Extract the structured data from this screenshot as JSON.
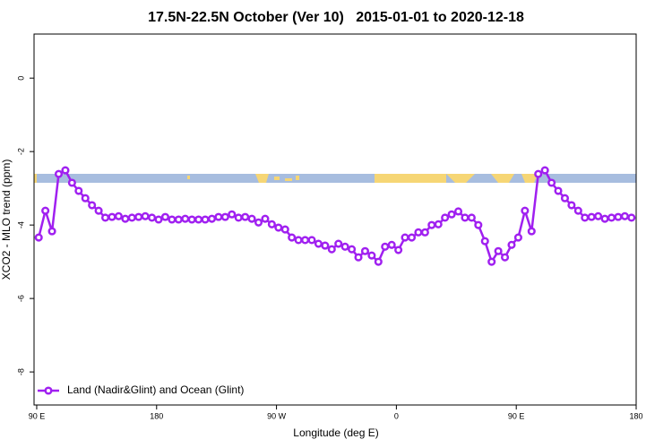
{
  "chart_data": {
    "type": "line",
    "title": "17.5N-22.5N October (Ver 10)   2015-01-01 to 2020-12-18",
    "x_label": "Longitude (deg E)",
    "y_label": "XCO2 - MLO trend (ppm)",
    "xlim": [
      88,
      540
    ],
    "xticks": [
      {
        "value": 90,
        "label": "90 E"
      },
      180,
      {
        "value": 270,
        "label": "90 W"
      },
      {
        "value": 360,
        "label": "0"
      },
      {
        "value": 450,
        "label": "90 E"
      },
      {
        "value": 540,
        "label": "180"
      }
    ],
    "ylim": [
      -8.9,
      1.2
    ],
    "yticks": [
      0,
      -2,
      -4,
      -6,
      -8
    ],
    "legend": "bottom-left",
    "x": [
      91.5,
      96.5,
      101.5,
      106.5,
      111.5,
      116.5,
      121.5,
      126.5,
      131.5,
      136.5,
      141.5,
      146.5,
      151.5,
      156.5,
      161.5,
      166.5,
      171.5,
      176.5,
      181.5,
      186.5,
      191.5,
      196.5,
      201.5,
      206.5,
      211.5,
      216.5,
      221.5,
      226.5,
      231.5,
      236.5,
      241.5,
      246.5,
      251.5,
      256.5,
      261.5,
      266.5,
      271.5,
      276.5,
      281.5,
      286.5,
      291.5,
      296.5,
      301.5,
      306.5,
      311.5,
      316.5,
      321.5,
      326.5,
      331.5,
      336.5,
      341.5,
      346.5,
      351.5,
      356.5,
      361.5,
      366.5,
      371.5,
      376.5,
      381.5,
      386.5,
      391.5,
      396.5,
      401.5,
      406.5,
      411.5,
      416.5,
      421.5,
      426.5,
      431.5,
      436.5,
      441.5,
      446.5,
      451.5,
      456.5,
      461.5,
      466.5,
      471.5,
      476.5,
      481.5,
      486.5,
      491.5,
      496.5,
      501.5,
      506.5,
      511.5,
      516.5,
      521.5,
      526.5,
      531.5,
      536.5
    ],
    "series": [
      {
        "name": "Land (Nadir&Glint) and Ocean (Glint)",
        "color": "#a020f0",
        "values": [
          -4.34,
          -3.61,
          -4.17,
          -2.61,
          -2.51,
          -2.85,
          -3.07,
          -3.27,
          -3.46,
          -3.61,
          -3.8,
          -3.78,
          -3.76,
          -3.83,
          -3.8,
          -3.78,
          -3.76,
          -3.8,
          -3.85,
          -3.78,
          -3.85,
          -3.85,
          -3.83,
          -3.85,
          -3.85,
          -3.85,
          -3.83,
          -3.78,
          -3.78,
          -3.71,
          -3.8,
          -3.78,
          -3.83,
          -3.93,
          -3.83,
          -3.98,
          -4.07,
          -4.12,
          -4.34,
          -4.41,
          -4.41,
          -4.41,
          -4.51,
          -4.56,
          -4.66,
          -4.51,
          -4.59,
          -4.66,
          -4.88,
          -4.71,
          -4.83,
          -5.0,
          -4.59,
          -4.54,
          -4.68,
          -4.34,
          -4.34,
          -4.2,
          -4.2,
          -4.0,
          -3.98,
          -3.8,
          -3.71,
          -3.63,
          -3.8,
          -3.8,
          -4.0,
          -4.44,
          -5.0,
          -4.71,
          -4.88,
          -4.54,
          -4.34,
          -3.61,
          -4.17,
          -2.61,
          -2.51,
          -2.85,
          -3.07,
          -3.27,
          -3.46,
          -3.61,
          -3.8,
          -3.78,
          -3.76,
          -3.83,
          -3.8,
          -3.78,
          -3.76,
          -3.8
        ]
      }
    ]
  }
}
